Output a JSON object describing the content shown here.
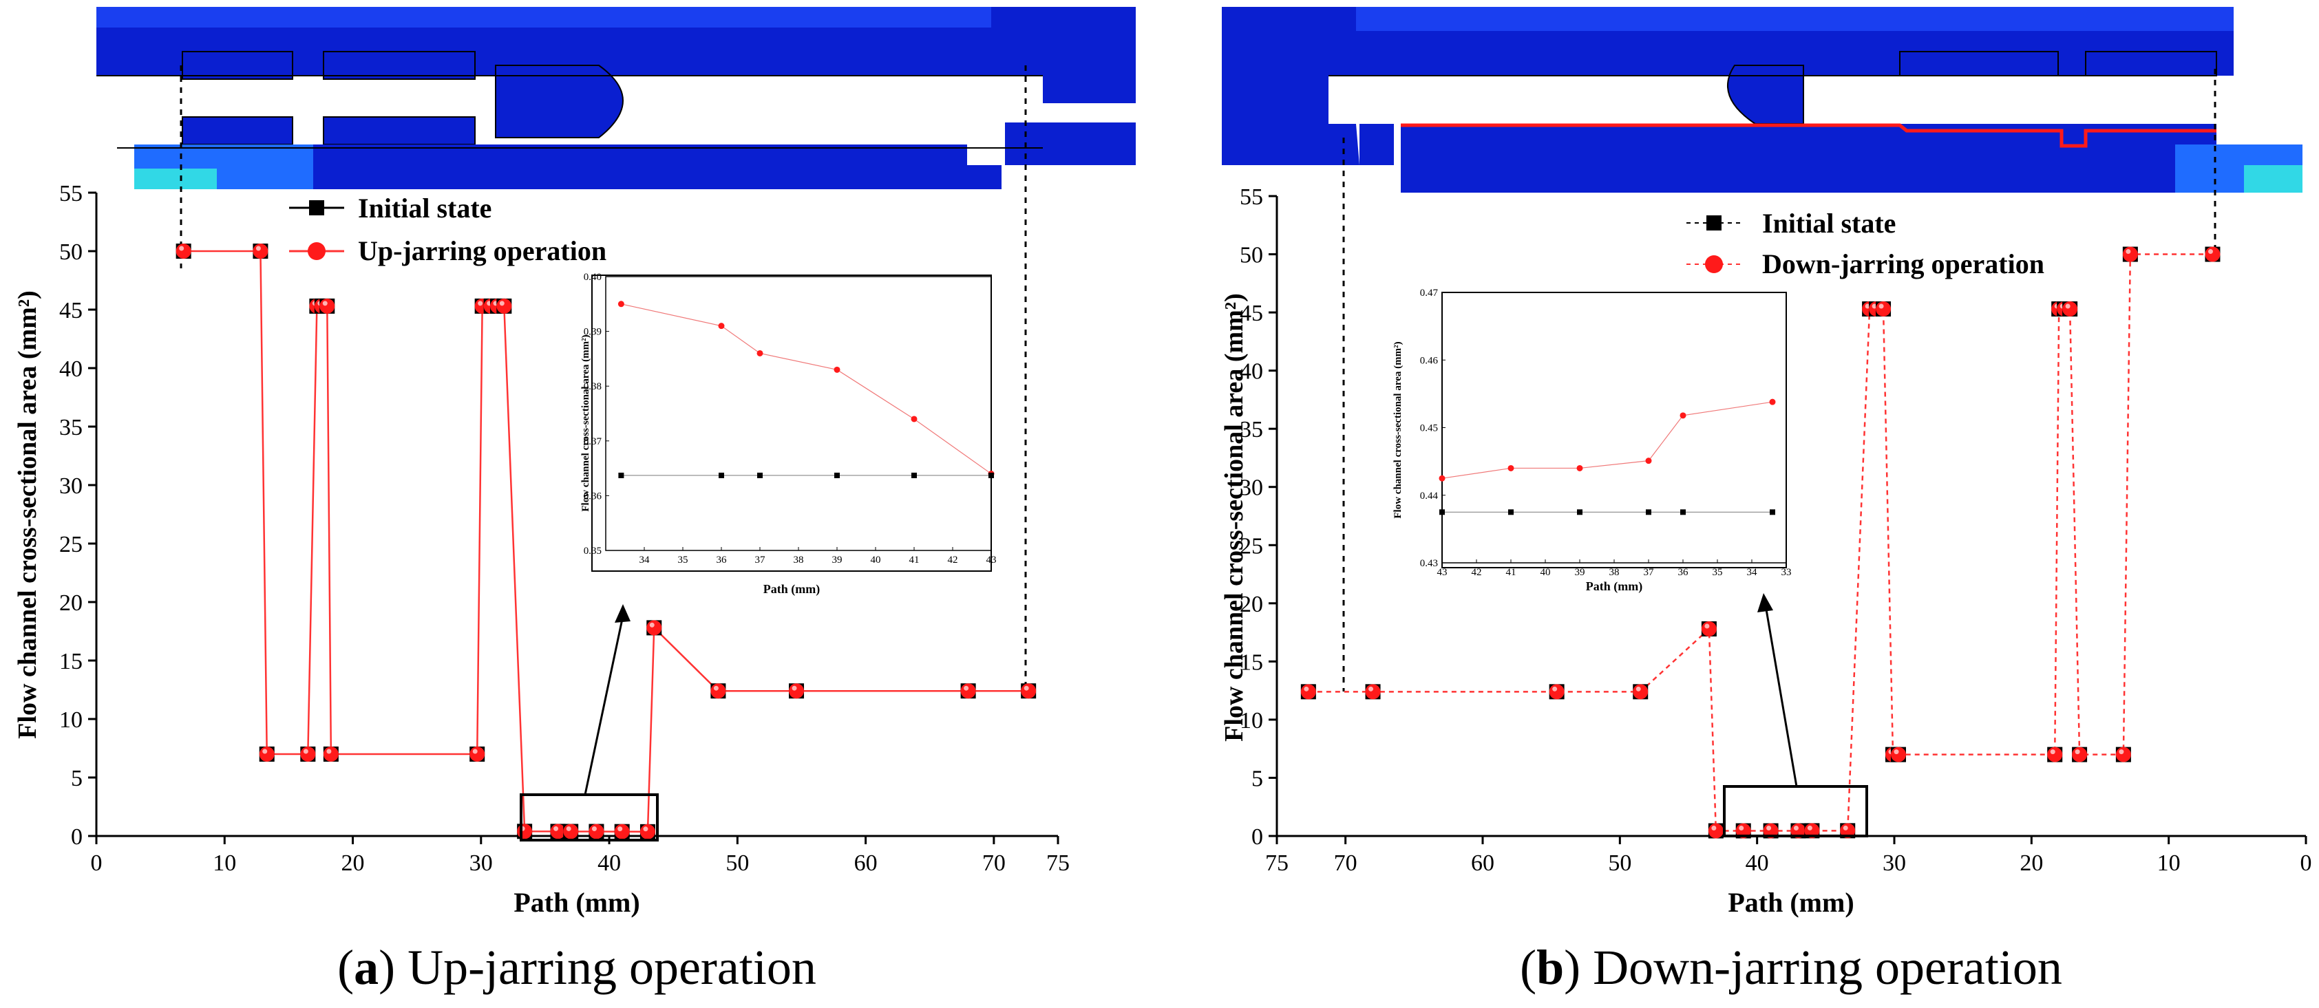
{
  "colors": {
    "red_marker": "#ff1a1a",
    "red_line": "#ff3333",
    "inset_red": "#f07878",
    "fem_blue": "#0a1fd0",
    "fem_dark": "#000a9a",
    "fem_light": "#1f6cff",
    "fem_cyan": "#31d8e6"
  },
  "panel_a": {
    "caption_letter": "a",
    "caption_text": "Up-jarring operation",
    "simulation_image_icon": "fem-contour-cross-section",
    "chart_data": {
      "type": "line",
      "xlabel": "Path (mm)",
      "ylabel": "Flow channel cross-sectional area  (mm²)",
      "xlim": [
        0,
        75
      ],
      "ylim": [
        0,
        55
      ],
      "xticks": [
        "0",
        "10",
        "20",
        "30",
        "40",
        "50",
        "60",
        "70",
        "75"
      ],
      "yticks": [
        "0",
        "5",
        "10",
        "15",
        "20",
        "25",
        "30",
        "35",
        "40",
        "45",
        "50",
        "55"
      ],
      "legend": [
        "Initial state",
        "Up-jarring operation"
      ],
      "series": [
        {
          "name": "Up-jarring operation",
          "x": [
            6.8,
            12.8,
            13.3,
            16.5,
            17.2,
            17.6,
            18.0,
            18.3,
            29.7,
            30.1,
            30.8,
            31.3,
            31.8,
            33.4,
            36.0,
            37.0,
            39.0,
            41.0,
            43.0,
            43.5,
            48.5,
            54.6,
            68.0,
            72.7
          ],
          "y": [
            50,
            50,
            7,
            7,
            45.3,
            45.3,
            45.3,
            7,
            7,
            45.3,
            45.3,
            45.3,
            45.3,
            0.395,
            0.391,
            0.386,
            0.383,
            0.374,
            0.364,
            17.8,
            12.4,
            12.4,
            12.4,
            12.4
          ]
        }
      ],
      "inset": {
        "xlabel": "Path (mm)",
        "ylabel": "Flow channel cross-sectional area  (mm²)",
        "xticks": [
          "34",
          "35",
          "36",
          "37",
          "38",
          "39",
          "40",
          "41",
          "42",
          "43"
        ],
        "yticks": [
          "0.35",
          "0.36",
          "0.37",
          "0.38",
          "0.39",
          "0.40"
        ],
        "xlim": [
          33,
          43
        ],
        "ylim": [
          0.35,
          0.4
        ],
        "series": [
          {
            "name": "Up-jarring operation",
            "x": [
              33.4,
              36.0,
              37.0,
              39.0,
              41.0,
              43.0
            ],
            "y": [
              0.395,
              0.391,
              0.386,
              0.383,
              0.374,
              0.364
            ]
          },
          {
            "name": "Initial state",
            "x": [
              33.4,
              36.0,
              37.0,
              39.0,
              41.0,
              43.0
            ],
            "y": [
              0.3637,
              0.3637,
              0.3637,
              0.3637,
              0.3637,
              0.3637
            ]
          }
        ]
      }
    }
  },
  "panel_b": {
    "caption_letter": "b",
    "caption_text": "Down-jarring operation",
    "simulation_image_icon": "fem-contour-cross-section",
    "chart_data": {
      "type": "line",
      "xlabel": "Path (mm)",
      "ylabel": "Flow channel cross-sectional area  (mm²)",
      "xlim": [
        75,
        0
      ],
      "ylim": [
        0,
        55
      ],
      "xticks": [
        "75",
        "70",
        "60",
        "50",
        "40",
        "30",
        "20",
        "10",
        "0"
      ],
      "yticks": [
        "0",
        "5",
        "10",
        "15",
        "20",
        "25",
        "30",
        "35",
        "40",
        "45",
        "50",
        "55"
      ],
      "legend": [
        "Initial state",
        "Down-jarring operation"
      ],
      "series": [
        {
          "name": "Down-jarring operation",
          "x": [
            72.7,
            68.0,
            54.6,
            48.5,
            43.5,
            43.0,
            41.0,
            39.0,
            37.0,
            36.0,
            33.4,
            31.8,
            31.3,
            30.8,
            30.1,
            29.7,
            18.3,
            18.0,
            17.6,
            17.2,
            16.5,
            13.3,
            12.8,
            6.8
          ],
          "y": [
            12.4,
            12.4,
            12.4,
            12.4,
            17.8,
            0.443,
            0.444,
            0.444,
            0.445,
            0.451,
            0.453,
            45.3,
            45.3,
            45.3,
            7,
            7,
            7,
            45.3,
            45.3,
            45.3,
            7,
            7,
            50,
            50
          ]
        }
      ],
      "inset": {
        "xlabel": "Path (mm)",
        "ylabel": "Flow channel cross-sectional area  (mm²)",
        "xticks": [
          "43",
          "42",
          "41",
          "40",
          "39",
          "38",
          "37",
          "36",
          "35",
          "34",
          "33"
        ],
        "yticks": [
          "0.43",
          "0.44",
          "0.45",
          "0.46",
          "0.47"
        ],
        "xlim": [
          43,
          33
        ],
        "ylim": [
          0.43,
          0.47
        ],
        "series": [
          {
            "name": "Down-jarring operation",
            "x": [
              43.0,
              41.0,
              39.0,
              37.0,
              36.0,
              33.4
            ],
            "y": [
              0.4425,
              0.444,
              0.444,
              0.4451,
              0.4518,
              0.4538
            ]
          },
          {
            "name": "Initial state",
            "x": [
              43.0,
              41.0,
              39.0,
              37.0,
              36.0,
              33.4
            ],
            "y": [
              0.4375,
              0.4375,
              0.4375,
              0.4375,
              0.4375,
              0.4375
            ]
          }
        ]
      }
    }
  }
}
